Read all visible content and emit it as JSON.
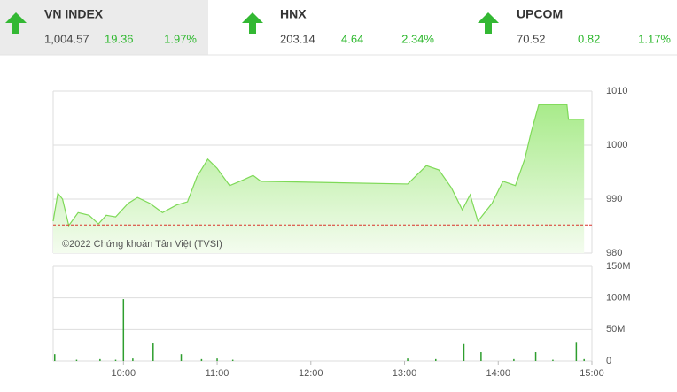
{
  "header": {
    "tiles": [
      {
        "name": "VN INDEX",
        "value": "1,004.57",
        "change": "19.36",
        "percent": "1.97%"
      },
      {
        "name": "HNX",
        "value": "203.14",
        "change": "4.64",
        "percent": "2.34%"
      },
      {
        "name": "UPCOM",
        "value": "70.52",
        "change": "0.82",
        "percent": "1.17%"
      }
    ]
  },
  "chart_data": [
    {
      "type": "area",
      "color": "#7ed957",
      "annotation": "©2022 Chứng khoán Tân Việt (TVSI)",
      "reference": 985.21,
      "reference_color": "#d9342b",
      "x": [
        "09:15",
        "09:18",
        "09:21",
        "09:25",
        "09:31",
        "09:38",
        "09:44",
        "09:49",
        "09:55",
        "10:03",
        "10:09",
        "10:17",
        "10:25",
        "10:34",
        "10:41",
        "10:47",
        "10:54",
        "11:00",
        "11:08",
        "11:17",
        "11:23",
        "11:28",
        "13:02",
        "13:14",
        "13:22",
        "13:30",
        "13:37",
        "13:42",
        "13:47",
        "13:56",
        "14:03",
        "14:11",
        "14:17",
        "14:21",
        "14:26",
        "14:44",
        "14:45",
        "14:55"
      ],
      "values": [
        985.9,
        991.1,
        990.0,
        985.1,
        987.5,
        987.0,
        985.4,
        987.0,
        986.7,
        989.2,
        990.3,
        989.2,
        987.5,
        988.9,
        989.5,
        994.1,
        997.4,
        995.7,
        992.5,
        993.6,
        994.4,
        993.3,
        992.8,
        996.2,
        995.4,
        992.1,
        988.0,
        990.8,
        985.9,
        989.2,
        993.3,
        992.5,
        997.4,
        1002.3,
        1007.5,
        1007.5,
        1004.8,
        1004.8
      ],
      "xlim": [
        "09:15",
        "15:00"
      ],
      "ylim": [
        980,
        1010
      ],
      "yticks": [
        980,
        990,
        1000,
        1010
      ],
      "grid": true
    },
    {
      "type": "bar",
      "color": "#2e9e2e",
      "x": [
        "09:16",
        "09:30",
        "09:45",
        "09:55",
        "10:00",
        "10:06",
        "10:19",
        "10:37",
        "10:50",
        "11:00",
        "11:10",
        "13:02",
        "13:20",
        "13:38",
        "13:49",
        "14:10",
        "14:24",
        "14:35",
        "14:50",
        "14:55"
      ],
      "values": [
        11,
        2,
        3,
        2,
        98,
        4,
        28,
        11,
        3,
        4,
        2,
        4,
        3,
        27,
        14,
        3,
        14,
        2,
        29,
        3
      ],
      "xlim": [
        "09:15",
        "15:00"
      ],
      "ylim": [
        0,
        150
      ],
      "yticks": [
        {
          "value": 0,
          "label": "0"
        },
        {
          "value": 50,
          "label": "50M"
        },
        {
          "value": 100,
          "label": "100M"
        },
        {
          "value": 150,
          "label": "150M"
        }
      ],
      "xticks": [
        "10:00",
        "11:00",
        "12:00",
        "13:00",
        "14:00",
        "15:00"
      ],
      "grid": true
    }
  ]
}
